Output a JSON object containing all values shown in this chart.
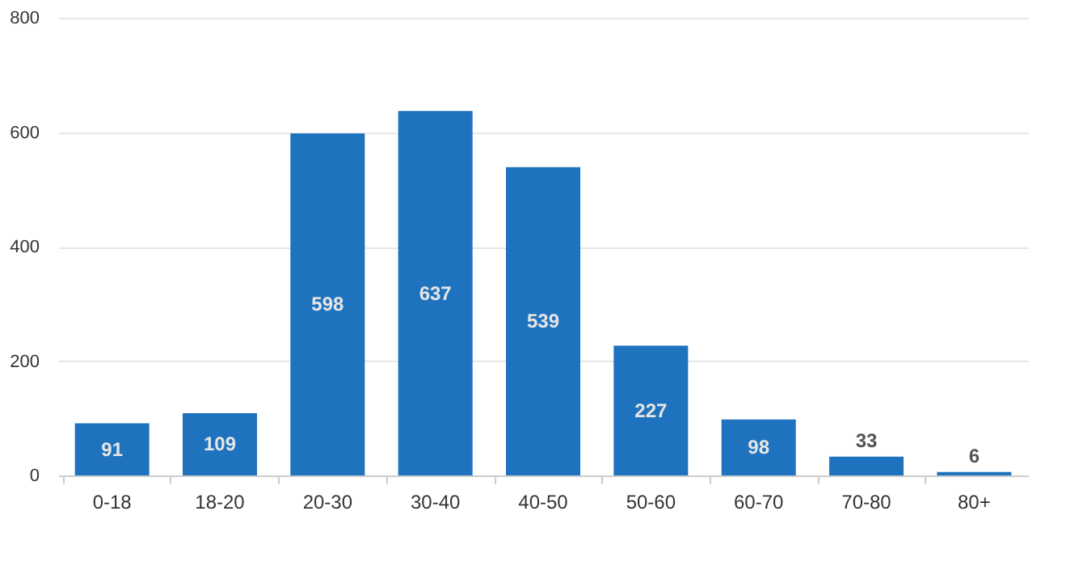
{
  "chart_data": {
    "type": "bar",
    "categories": [
      "0-18",
      "18-20",
      "20-30",
      "30-40",
      "40-50",
      "50-60",
      "60-70",
      "70-80",
      "80+"
    ],
    "values": [
      91,
      109,
      598,
      637,
      539,
      227,
      98,
      33,
      6
    ],
    "color": "#1f73be",
    "ylim": [
      0,
      800
    ],
    "yticks": [
      0,
      200,
      400,
      600,
      800
    ],
    "grid": "y",
    "data_labels": true
  }
}
